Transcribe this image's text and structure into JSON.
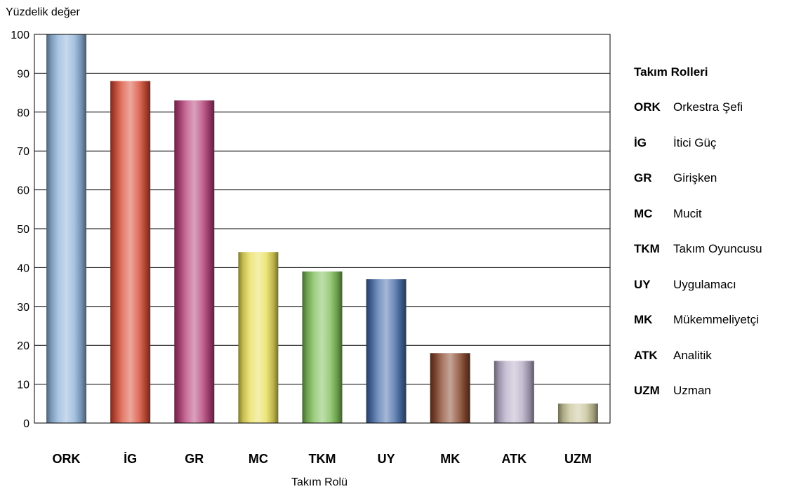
{
  "chart_data": {
    "type": "bar",
    "title": "",
    "ylabel": "Yüzdelik değer",
    "xlabel": "Takım Rolü",
    "ylim": [
      0,
      100
    ],
    "yticks": [
      0,
      10,
      20,
      30,
      40,
      50,
      60,
      70,
      80,
      90,
      100
    ],
    "grid": true,
    "categories": [
      "ORK",
      "İG",
      "GR",
      "MC",
      "TKM",
      "UY",
      "MK",
      "ATK",
      "UZM"
    ],
    "values": [
      100,
      88,
      83,
      44,
      39,
      37,
      18,
      16,
      5
    ],
    "colors": [
      "#8fb3d9",
      "#d9503a",
      "#b7427a",
      "#e8de5a",
      "#7fbf5a",
      "#4a6faa",
      "#8a4a30",
      "#b8aec8",
      "#c8c49a"
    ]
  },
  "legend": {
    "title": "Takım Rolleri",
    "items": [
      {
        "code": "ORK",
        "name": "Orkestra Şefi"
      },
      {
        "code": "İG",
        "name": "İtici Güç"
      },
      {
        "code": "GR",
        "name": "Girişken"
      },
      {
        "code": "MC",
        "name": "Mucit"
      },
      {
        "code": "TKM",
        "name": "Takım Oyuncusu"
      },
      {
        "code": "UY",
        "name": "Uygulamacı"
      },
      {
        "code": "MK",
        "name": "Mükemmeliyetçi"
      },
      {
        "code": "ATK",
        "name": "Analitik"
      },
      {
        "code": "UZM",
        "name": "Uzman"
      }
    ]
  }
}
